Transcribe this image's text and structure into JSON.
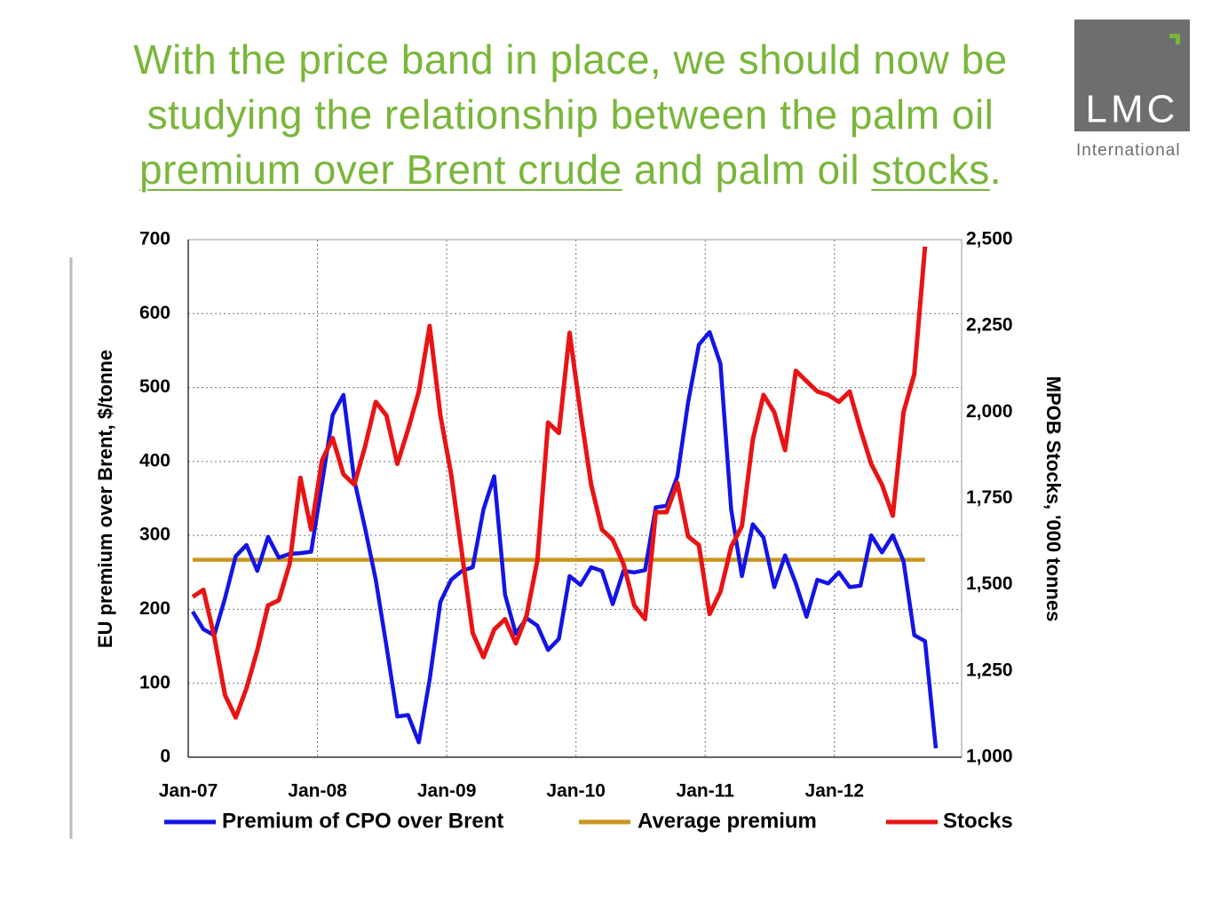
{
  "slide": {
    "title": [
      "With the price band in place, we should now be studying the relationship between the palm oil ",
      "premium over Brent crude",
      " and palm oil ",
      "stocks",
      "."
    ],
    "logo": {
      "name": "LMC",
      "subtitle": "International"
    }
  },
  "chart_data": {
    "type": "line",
    "categories": [
      "Jan-07",
      null,
      null,
      null,
      null,
      null,
      null,
      null,
      null,
      null,
      null,
      null,
      "Jan-08",
      null,
      null,
      null,
      null,
      null,
      null,
      null,
      null,
      null,
      null,
      null,
      "Jan-09",
      null,
      null,
      null,
      null,
      null,
      null,
      null,
      null,
      null,
      null,
      null,
      "Jan-10",
      null,
      null,
      null,
      null,
      null,
      null,
      null,
      null,
      null,
      null,
      null,
      "Jan-11",
      null,
      null,
      null,
      null,
      null,
      null,
      null,
      null,
      null,
      null,
      null,
      "Jan-12",
      null,
      null,
      null,
      null,
      null,
      null,
      null,
      null,
      null
    ],
    "y_label": "EU premium over Brent, $/tonne",
    "y2_label": "MPOB Stocks, '000 tonnes",
    "ylim": [
      0,
      700
    ],
    "yticks": [
      0,
      100,
      200,
      300,
      400,
      500,
      600,
      700
    ],
    "y2lim": [
      1000,
      2500
    ],
    "y2ticks": [
      {
        "value": 1000,
        "label": "1,000"
      },
      {
        "value": 1250,
        "label": "1,250"
      },
      {
        "value": 1500,
        "label": "1,500"
      },
      {
        "value": 1750,
        "label": "1,750"
      },
      {
        "value": 2000,
        "label": "2,000"
      },
      {
        "value": 2250,
        "label": "2,250"
      },
      {
        "value": 2500,
        "label": "2,500"
      }
    ],
    "grid": true,
    "series": [
      {
        "name": "Premium of CPO over Brent",
        "color": "#1414e6",
        "values": [
          197,
          173,
          165,
          215,
          272,
          287,
          252,
          298,
          270,
          275,
          276,
          278,
          370,
          463,
          490,
          375,
          310,
          240,
          150,
          55,
          57,
          20,
          105,
          210,
          240,
          252,
          257,
          335,
          380,
          220,
          167,
          188,
          178,
          145,
          160,
          245,
          233,
          257,
          252,
          207,
          252,
          250,
          253,
          338,
          340,
          380,
          480,
          558,
          575,
          532,
          335,
          245,
          315,
          297,
          230,
          273,
          235,
          190,
          240,
          235,
          250,
          230,
          232,
          300,
          277,
          300,
          265,
          165,
          157,
          12
        ]
      },
      {
        "name": "Average premium",
        "color": "#c8961e",
        "values": [
          267,
          267,
          267,
          267,
          267,
          267,
          267,
          267,
          267,
          267,
          267,
          267,
          267,
          267,
          267,
          267,
          267,
          267,
          267,
          267,
          267,
          267,
          267,
          267,
          267,
          267,
          267,
          267,
          267,
          267,
          267,
          267,
          267,
          267,
          267,
          267,
          267,
          267,
          267,
          267,
          267,
          267,
          267,
          267,
          267,
          267,
          267,
          267,
          267,
          267,
          267,
          267,
          267,
          267,
          267,
          267,
          267,
          267,
          267,
          267,
          267,
          267,
          267,
          267,
          267,
          267,
          267,
          267,
          267,
          null
        ]
      },
      {
        "name": "Stocks",
        "color": "#e81414",
        "axis": "y2",
        "values": [
          1465,
          1485,
          1350,
          1180,
          1115,
          1200,
          1310,
          1440,
          1455,
          1560,
          1810,
          1660,
          1860,
          1925,
          1820,
          1790,
          1900,
          2030,
          1990,
          1850,
          1950,
          2060,
          2250,
          1990,
          1820,
          1590,
          1360,
          1290,
          1370,
          1400,
          1330,
          1410,
          1570,
          1970,
          1940,
          2230,
          2000,
          1790,
          1660,
          1630,
          1560,
          1440,
          1400,
          1710,
          1710,
          1795,
          1640,
          1615,
          1415,
          1480,
          1610,
          1670,
          1920,
          2050,
          2000,
          1890,
          2120,
          2090,
          2060,
          2050,
          2030,
          2060,
          1950,
          1850,
          1790,
          1700,
          2000,
          2110,
          2480,
          null
        ]
      }
    ]
  }
}
